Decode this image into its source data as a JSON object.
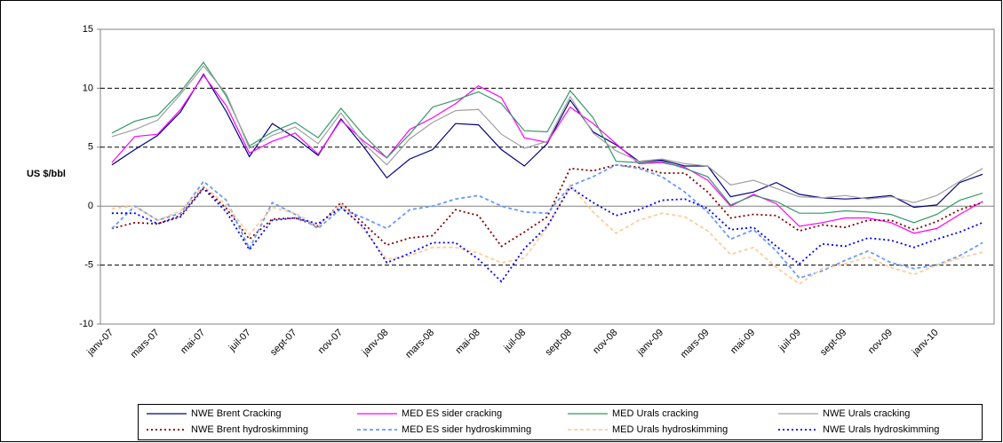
{
  "chart_data": {
    "type": "line",
    "y_label": "US $/bbl",
    "categories": [
      "janv-07",
      null,
      "mars-07",
      null,
      "mai-07",
      null,
      "juil-07",
      null,
      "sept-07",
      null,
      "nov-07",
      null,
      "janv-08",
      null,
      "mars-08",
      null,
      "mai-08",
      null,
      "juil-08",
      null,
      "sept-08",
      null,
      "nov-08",
      null,
      "janv-09",
      null,
      "mars-09",
      null,
      "mai-09",
      null,
      "juil-09",
      null,
      "sept-09",
      null,
      "nov-09",
      null,
      "janv-10",
      null,
      null
    ],
    "ylim": [
      -10,
      15
    ],
    "yticks": [
      -10,
      -5,
      0,
      5,
      10,
      15
    ],
    "grid": true,
    "legend": "bottom",
    "series": [
      {
        "name": "NWE Brent Cracking",
        "color": "#000080",
        "dash": "solid",
        "values": [
          3.5,
          4.8,
          6,
          8,
          11.2,
          8,
          4.2,
          7,
          5.8,
          4.3,
          7.4,
          5,
          2.4,
          4,
          4.8,
          7,
          6.9,
          4.8,
          3.4,
          5.3,
          9,
          6.3,
          5.2,
          3.8,
          3.9,
          3.4,
          3.4,
          0.8,
          1.2,
          2,
          1,
          0.7,
          0.6,
          0.7,
          0.9,
          -0.1,
          0.1,
          2,
          2.7
        ]
      },
      {
        "name": "MED ES sider cracking",
        "color": "#ff00ff",
        "dash": "solid",
        "values": [
          3.7,
          5.9,
          6.1,
          8.2,
          11.1,
          8.5,
          4.5,
          5.5,
          6.2,
          4.4,
          7.3,
          5.5,
          4.1,
          6.5,
          7.5,
          8.7,
          10.2,
          9.2,
          5.8,
          5.4,
          8.4,
          7,
          5.3,
          3.6,
          3.7,
          3.3,
          2.2,
          0,
          1,
          0.2,
          -1.7,
          -1.4,
          -1,
          -1,
          -1.4,
          -2.3,
          -1.9,
          -0.7,
          0.4
        ]
      },
      {
        "name": "MED Urals cracking",
        "color": "#339966",
        "dash": "solid",
        "values": [
          6.2,
          7.2,
          7.7,
          9.7,
          12.2,
          9.3,
          5.1,
          6.3,
          7.1,
          5.8,
          8.3,
          6,
          4.1,
          6.1,
          8.4,
          9,
          9.7,
          8.7,
          6.4,
          6.3,
          9.8,
          7.5,
          3.8,
          3.7,
          3.8,
          3.2,
          2.5,
          0.1,
          0.9,
          0.4,
          -0.6,
          -0.6,
          -0.4,
          -0.5,
          -0.7,
          -1.4,
          -0.7,
          0.5,
          1.1
        ]
      },
      {
        "name": "NWE Urals cracking",
        "color": "#a0a0a0",
        "dash": "solid",
        "values": [
          5.9,
          6.5,
          7.3,
          9.5,
          11.9,
          9.5,
          4.9,
          6,
          6.7,
          5.3,
          7.9,
          5.3,
          3.5,
          5.7,
          7.1,
          8.1,
          8.2,
          6.1,
          4.9,
          5.5,
          9.3,
          6.2,
          4.7,
          3.8,
          4,
          3.6,
          3.4,
          1.8,
          2.2,
          1.5,
          0.8,
          0.7,
          0.9,
          0.6,
          0.8,
          0.3,
          0.9,
          2.1,
          3.2
        ]
      },
      {
        "name": "NWE Brent hydroskimming",
        "color": "#800000",
        "dash": "dotted",
        "values": [
          -1.9,
          -1.4,
          -1.5,
          -0.8,
          1.6,
          -0.2,
          -2.8,
          -1.1,
          -1,
          -1.7,
          0.3,
          -1.5,
          -3.3,
          -2.7,
          -2.5,
          -0.3,
          -0.8,
          -3.4,
          -2.2,
          -0.9,
          3.2,
          3,
          3.5,
          3.3,
          2.8,
          2.8,
          1.2,
          -1,
          -0.7,
          -0.8,
          -2.1,
          -1.6,
          -1.8,
          -1.2,
          -1.2,
          -2,
          -1.3,
          -0.3,
          0.3
        ]
      },
      {
        "name": "MED ES sider hydroskimming",
        "color": "#6699ff",
        "dash": "dashed",
        "values": [
          -1.9,
          0,
          -1.2,
          -0.6,
          2.1,
          0.5,
          -3.6,
          0.3,
          -0.7,
          -1.9,
          -0.2,
          -1,
          -1.9,
          -0.3,
          0,
          0.6,
          0.9,
          0,
          -0.5,
          -0.6,
          1.7,
          2.5,
          3.5,
          3.2,
          2.5,
          1.2,
          -0.5,
          -2.8,
          -2,
          -3.8,
          -6.1,
          -5.5,
          -4.6,
          -3.8,
          -4.8,
          -5.3,
          -5,
          -4.2,
          -3.1
        ]
      },
      {
        "name": "MED Urals hydroskimming",
        "color": "#ffcc99",
        "dash": "dashed",
        "values": [
          -0.2,
          0,
          -1.2,
          -0.4,
          1.7,
          0.1,
          -2.4,
          -0.1,
          -0.6,
          -1.7,
          0.2,
          -2,
          -4.5,
          -4.2,
          -3.5,
          -3.5,
          -4,
          -4.8,
          -4.4,
          -1.8,
          1.8,
          -0.5,
          -2.3,
          -1.2,
          -0.6,
          -0.9,
          -2.1,
          -4.1,
          -3.5,
          -5.2,
          -6.6,
          -5.3,
          -4.9,
          -4.3,
          -5.2,
          -5.8,
          -5,
          -4.4,
          -3.9
        ]
      },
      {
        "name": "NWE Urals hydroskimming",
        "color": "#0000ff",
        "dash": "dotted",
        "values": [
          -0.6,
          -0.6,
          -1.5,
          -0.9,
          1.5,
          -0.5,
          -3.7,
          -1.2,
          -1,
          -1.5,
          -0.1,
          -1.8,
          -4.8,
          -4,
          -3.1,
          -3.1,
          -4.5,
          -6.4,
          -3.6,
          -1.7,
          1.6,
          0.3,
          -0.8,
          -0.3,
          0.5,
          0.6,
          -0.2,
          -2,
          -1.8,
          -3.4,
          -4.9,
          -3.2,
          -3.4,
          -2.7,
          -2.9,
          -3.5,
          -2.8,
          -2.2,
          -1.4
        ]
      }
    ]
  }
}
